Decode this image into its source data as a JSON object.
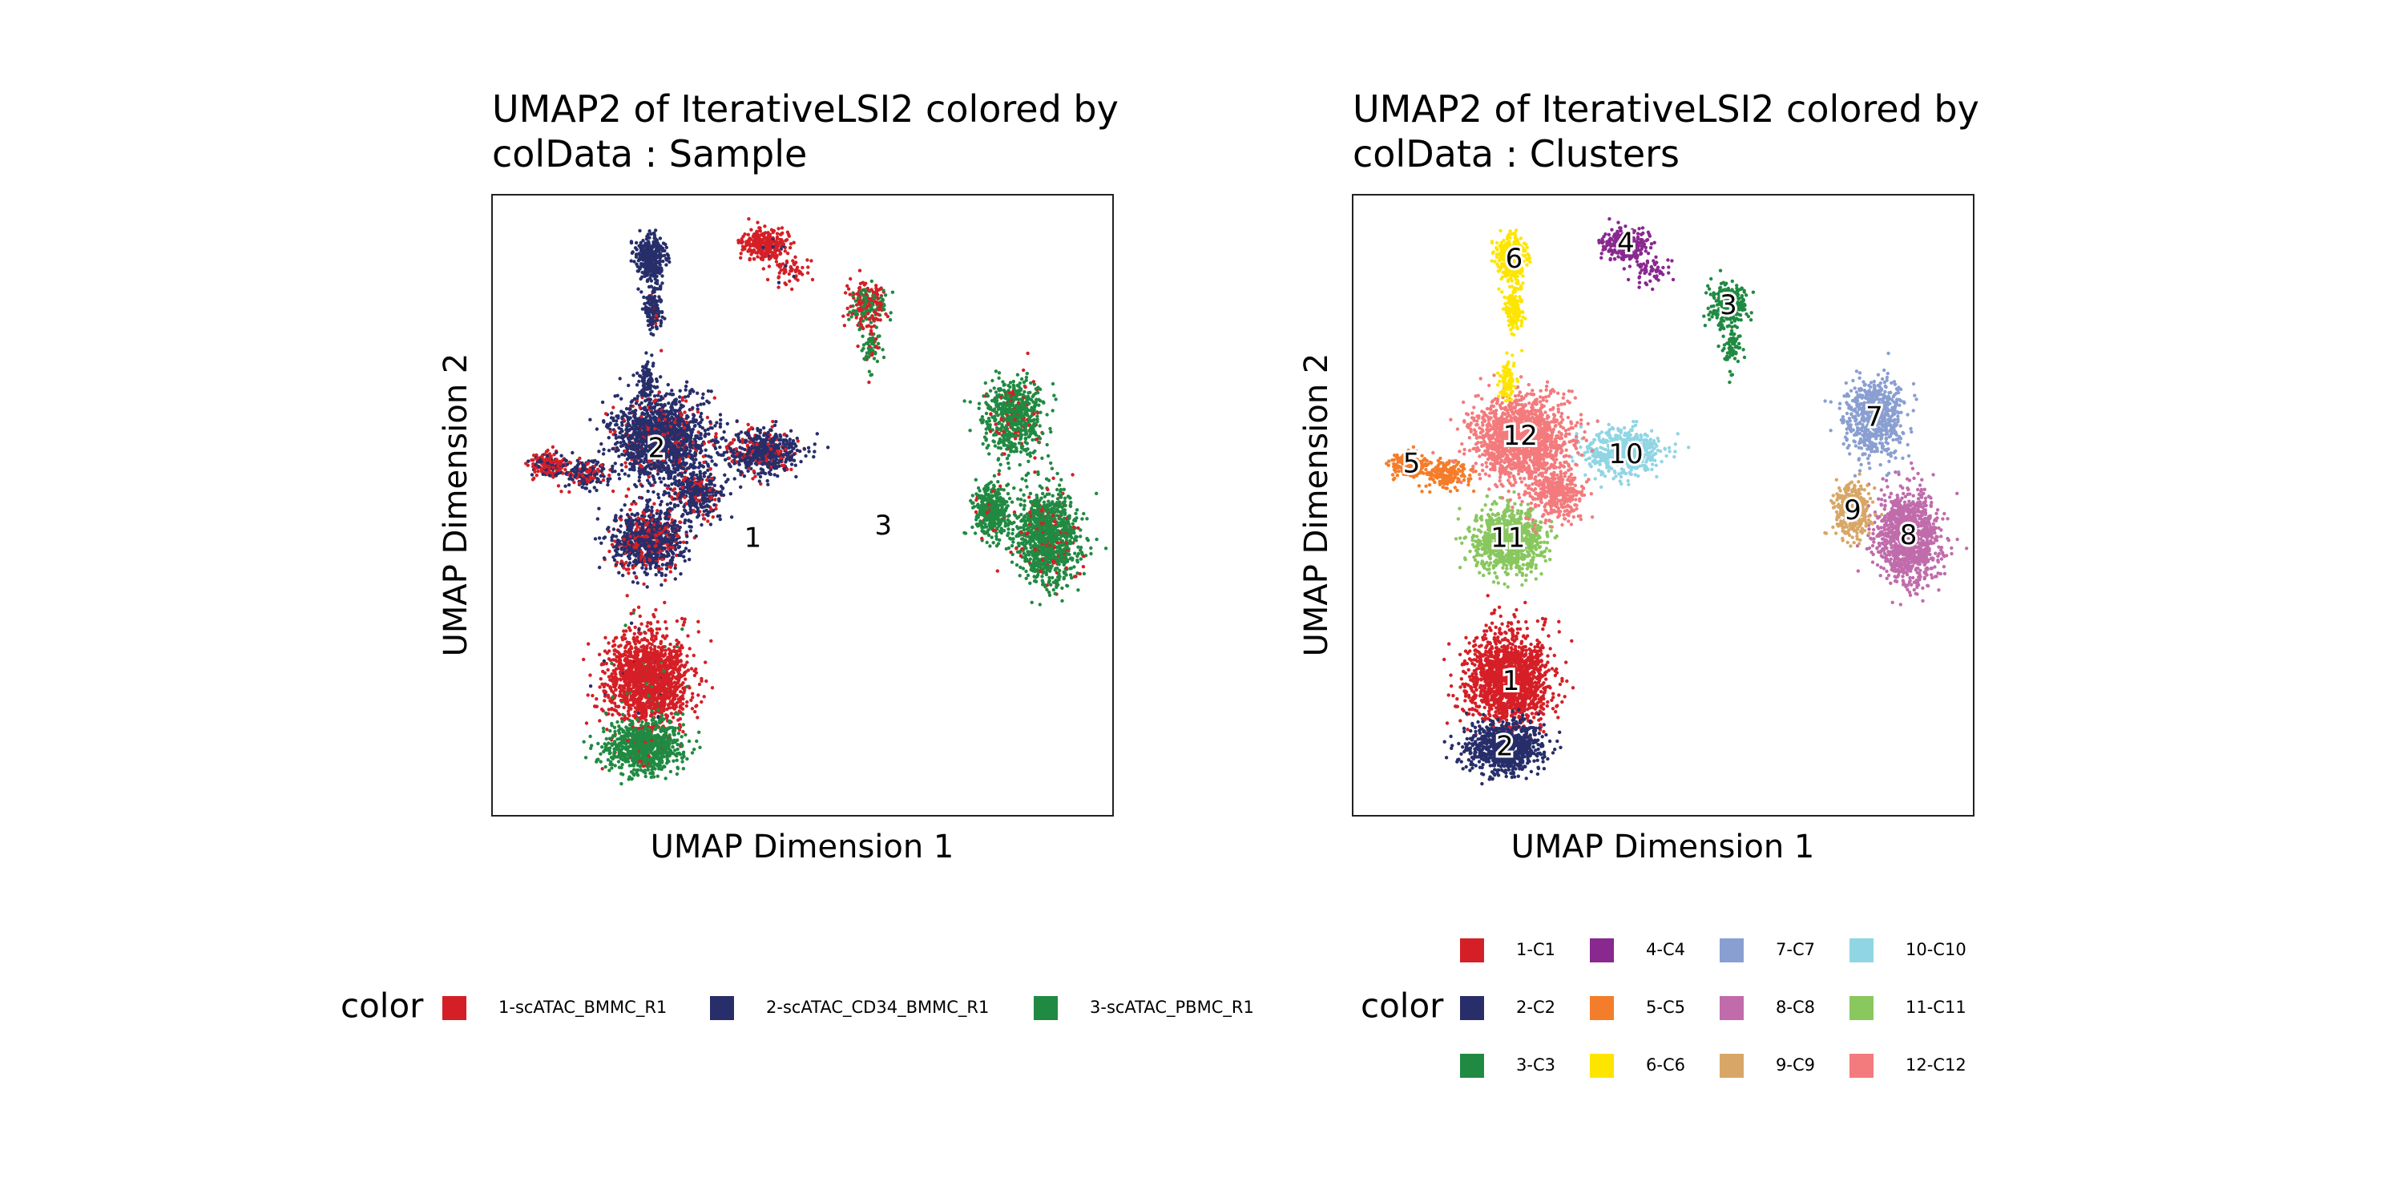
{
  "chart_data": [
    {
      "type": "scatter",
      "title_line1": "UMAP2 of IterativeLSI2  colored by",
      "title_line2": "colData :  Sample",
      "xlabel": "UMAP Dimension 1",
      "ylabel": "UMAP Dimension 2",
      "xlim": [
        0,
        100
      ],
      "ylim": [
        0,
        100
      ],
      "grid": false,
      "legend_position": "bottom",
      "legend_title": "color",
      "series": [
        {
          "name": "1-scATAC_BMMC_R1",
          "color": "#D51F26"
        },
        {
          "name": "2-scATAC_CD34_BMMC_R1",
          "color": "#272E6A"
        },
        {
          "name": "3-scATAC_PBMC_R1",
          "color": "#208A42"
        }
      ],
      "point_labels": [
        {
          "text": "2",
          "x": 26.5,
          "y": 59
        },
        {
          "text": "1",
          "x": 42,
          "y": 44.5
        },
        {
          "text": "3",
          "x": 63,
          "y": 46.5
        }
      ]
    },
    {
      "type": "scatter",
      "title_line1": "UMAP2 of IterativeLSI2  colored by",
      "title_line2": "colData :  Clusters",
      "xlabel": "UMAP Dimension 1",
      "ylabel": "UMAP Dimension 2",
      "xlim": [
        0,
        100
      ],
      "ylim": [
        0,
        100
      ],
      "grid": false,
      "legend_position": "bottom",
      "legend_title": "color",
      "series": [
        {
          "name": "1-C1",
          "color": "#D51F26"
        },
        {
          "name": "2-C2",
          "color": "#272E6A"
        },
        {
          "name": "3-C3",
          "color": "#208A42"
        },
        {
          "name": "4-C4",
          "color": "#89288F"
        },
        {
          "name": "5-C5",
          "color": "#F47D2B"
        },
        {
          "name": "6-C6",
          "color": "#FEE500"
        },
        {
          "name": "7-C7",
          "color": "#8A9FD1"
        },
        {
          "name": "8-C8",
          "color": "#C06CAB"
        },
        {
          "name": "9-C9",
          "color": "#D8A767"
        },
        {
          "name": "10-C10",
          "color": "#90D5E4"
        },
        {
          "name": "11-C11",
          "color": "#89C75F"
        },
        {
          "name": "12-C12",
          "color": "#F37B7D"
        }
      ],
      "point_labels": [
        {
          "text": "6",
          "x": 26,
          "y": 89.5
        },
        {
          "text": "4",
          "x": 44,
          "y": 92
        },
        {
          "text": "3",
          "x": 60.5,
          "y": 82
        },
        {
          "text": "7",
          "x": 84,
          "y": 64
        },
        {
          "text": "12",
          "x": 27,
          "y": 61
        },
        {
          "text": "10",
          "x": 44,
          "y": 58
        },
        {
          "text": "5",
          "x": 9.5,
          "y": 56.5
        },
        {
          "text": "9",
          "x": 80.5,
          "y": 49
        },
        {
          "text": "8",
          "x": 89.5,
          "y": 45
        },
        {
          "text": "11",
          "x": 25,
          "y": 44.5
        },
        {
          "text": "1",
          "x": 25.5,
          "y": 21.5
        },
        {
          "text": "2",
          "x": 24.5,
          "y": 11
        }
      ]
    }
  ]
}
